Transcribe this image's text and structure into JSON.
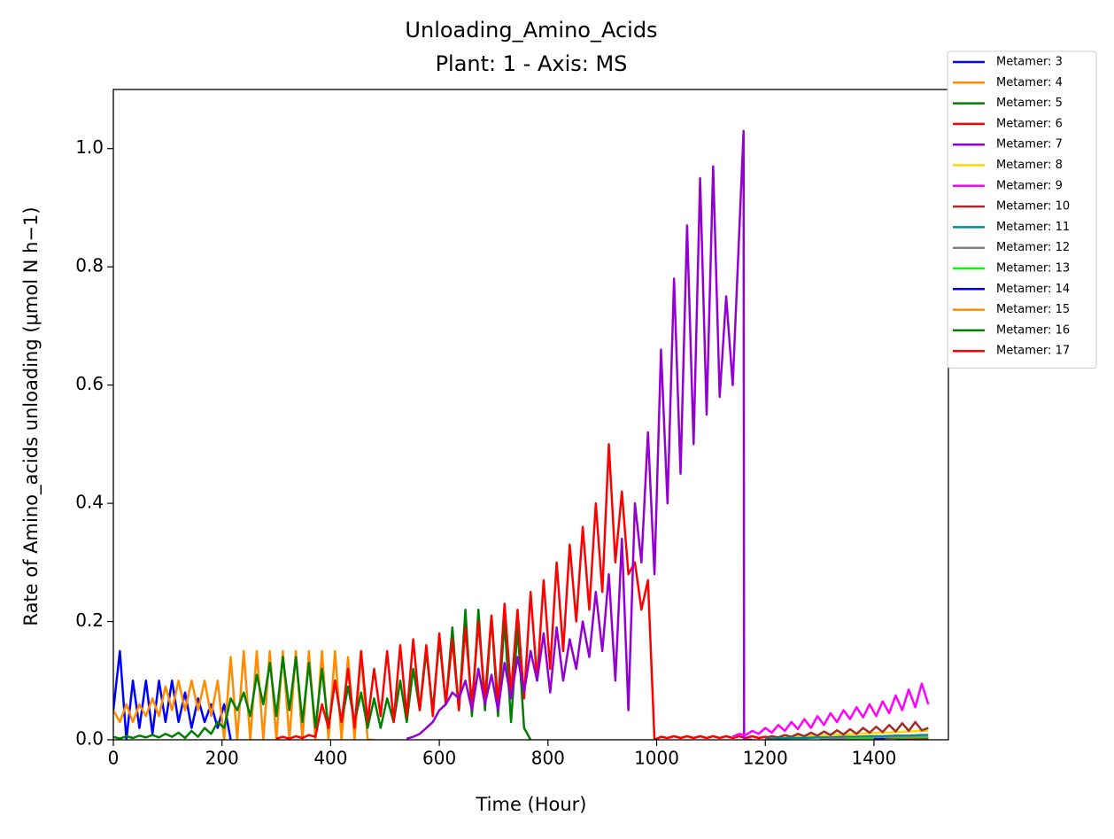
{
  "chart_data": {
    "type": "line",
    "title": "Unloading_Amino_Acids",
    "subtitle": "Plant: 1 - Axis: MS",
    "xlabel": "Time (Hour)",
    "ylabel": "Rate of Amino_acids unloading (μmol N h−1)",
    "xlim": [
      0,
      1537
    ],
    "ylim": [
      0,
      1.1
    ],
    "xticks": [
      0,
      200,
      400,
      600,
      800,
      1000,
      1200,
      1400
    ],
    "yticks": [
      {
        "value": 0,
        "label": "0.0"
      },
      0.2,
      0.4,
      0.6,
      0.8,
      {
        "value": 1,
        "label": "1.0"
      }
    ],
    "series": [
      {
        "name": "Metamer: 3",
        "color": "#0000ff",
        "x": [
          0,
          12,
          24,
          36,
          48,
          60,
          72,
          84,
          96,
          108,
          120,
          132,
          144,
          156,
          168,
          180,
          192,
          204,
          216
        ],
        "values": [
          0.05,
          0.15,
          0.0,
          0.1,
          0.02,
          0.1,
          0.01,
          0.1,
          0.03,
          0.1,
          0.03,
          0.08,
          0.02,
          0.07,
          0.03,
          0.06,
          0.02,
          0.06,
          0.0
        ]
      },
      {
        "name": "Metamer: 4",
        "color": "#ff8c00",
        "x": [
          0,
          12,
          24,
          36,
          48,
          60,
          72,
          84,
          96,
          108,
          120,
          132,
          144,
          156,
          168,
          180,
          192,
          204,
          216,
          228,
          240,
          252,
          264,
          276,
          288,
          300,
          312,
          324,
          336,
          348,
          360,
          372,
          384,
          396,
          408,
          420,
          432,
          444,
          456,
          468,
          480
        ],
        "values": [
          0.05,
          0.03,
          0.06,
          0.03,
          0.06,
          0.04,
          0.07,
          0.04,
          0.09,
          0.05,
          0.1,
          0.05,
          0.1,
          0.05,
          0.1,
          0.04,
          0.1,
          0.0,
          0.14,
          0.0,
          0.15,
          0.0,
          0.15,
          0.0,
          0.15,
          0.0,
          0.15,
          0.0,
          0.15,
          0.0,
          0.15,
          0.0,
          0.15,
          0.0,
          0.15,
          0.0,
          0.14,
          0.0,
          0.15,
          0.0,
          0.0
        ]
      },
      {
        "name": "Metamer: 5",
        "color": "#008000",
        "x": [
          0,
          12,
          24,
          36,
          48,
          60,
          72,
          84,
          96,
          108,
          120,
          132,
          144,
          156,
          168,
          180,
          192,
          204,
          216,
          228,
          240,
          252,
          264,
          276,
          288,
          300,
          312,
          324,
          336,
          348,
          360,
          372,
          384,
          396,
          408,
          420,
          432,
          444,
          456,
          468,
          480,
          492,
          504,
          516,
          528,
          540,
          552,
          564,
          576,
          588,
          600,
          612,
          624,
          636,
          648,
          660,
          672,
          684,
          696,
          708,
          720,
          732,
          744,
          756,
          768
        ],
        "values": [
          0.005,
          0.002,
          0.006,
          0.003,
          0.007,
          0.004,
          0.008,
          0.004,
          0.01,
          0.005,
          0.012,
          0.003,
          0.015,
          0.005,
          0.02,
          0.01,
          0.03,
          0.02,
          0.07,
          0.05,
          0.08,
          0.04,
          0.11,
          0.06,
          0.13,
          0.04,
          0.14,
          0.05,
          0.14,
          0.03,
          0.13,
          0.02,
          0.12,
          0.02,
          0.1,
          0.03,
          0.09,
          0.03,
          0.08,
          0.02,
          0.07,
          0.02,
          0.07,
          0.03,
          0.1,
          0.03,
          0.12,
          0.05,
          0.15,
          0.05,
          0.17,
          0.06,
          0.19,
          0.05,
          0.22,
          0.04,
          0.22,
          0.05,
          0.21,
          0.04,
          0.2,
          0.03,
          0.19,
          0.02,
          0.0
        ]
      },
      {
        "name": "Metamer: 6",
        "color": "#ff0000",
        "x": [
          300,
          312,
          324,
          336,
          348,
          360,
          372,
          384,
          396,
          408,
          420,
          432,
          444,
          456,
          468,
          480,
          492,
          504,
          516,
          528,
          540,
          552,
          564,
          576,
          588,
          600,
          612,
          624,
          636,
          648,
          660,
          672,
          684,
          696,
          708,
          720,
          732,
          744,
          756,
          768,
          780,
          792,
          804,
          816,
          828,
          840,
          852,
          864,
          876,
          888,
          900,
          912,
          924,
          936,
          948,
          960,
          972,
          984,
          996,
          1008,
          1020,
          1032,
          1044,
          1056,
          1068,
          1080,
          1092,
          1104,
          1116,
          1128,
          1140,
          1152,
          1164,
          1176,
          1188,
          1200,
          1212
        ],
        "values": [
          0.002,
          0.005,
          0.002,
          0.006,
          0.003,
          0.008,
          0.005,
          0.06,
          0.02,
          0.1,
          0.03,
          0.12,
          0.02,
          0.15,
          0.03,
          0.12,
          0.04,
          0.15,
          0.03,
          0.16,
          0.04,
          0.17,
          0.05,
          0.16,
          0.04,
          0.18,
          0.06,
          0.17,
          0.05,
          0.19,
          0.06,
          0.2,
          0.07,
          0.21,
          0.06,
          0.23,
          0.08,
          0.22,
          0.07,
          0.25,
          0.1,
          0.27,
          0.12,
          0.3,
          0.15,
          0.33,
          0.2,
          0.36,
          0.22,
          0.4,
          0.25,
          0.5,
          0.3,
          0.42,
          0.28,
          0.3,
          0.22,
          0.27,
          0.0,
          0.005,
          0.003,
          0.006,
          0.003,
          0.006,
          0.003,
          0.006,
          0.003,
          0.006,
          0.003,
          0.006,
          0.003,
          0.006,
          0.003,
          0.006,
          0.003,
          0.005,
          0.003
        ]
      },
      {
        "name": "Metamer: 7",
        "color": "#9400d3",
        "x": [
          540,
          552,
          564,
          576,
          588,
          600,
          612,
          624,
          636,
          648,
          660,
          672,
          684,
          696,
          708,
          720,
          732,
          744,
          756,
          768,
          780,
          792,
          804,
          816,
          828,
          840,
          852,
          864,
          876,
          888,
          900,
          912,
          924,
          936,
          948,
          960,
          972,
          984,
          996,
          1008,
          1020,
          1032,
          1044,
          1056,
          1068,
          1080,
          1092,
          1104,
          1116,
          1128,
          1140,
          1160,
          1161,
          1176
        ],
        "values": [
          0.002,
          0.005,
          0.01,
          0.02,
          0.03,
          0.05,
          0.06,
          0.08,
          0.07,
          0.1,
          0.05,
          0.12,
          0.06,
          0.11,
          0.05,
          0.13,
          0.07,
          0.14,
          0.08,
          0.15,
          0.1,
          0.18,
          0.08,
          0.19,
          0.1,
          0.17,
          0.12,
          0.2,
          0.14,
          0.25,
          0.15,
          0.28,
          0.1,
          0.34,
          0.05,
          0.4,
          0.3,
          0.52,
          0.28,
          0.66,
          0.4,
          0.78,
          0.45,
          0.87,
          0.5,
          0.95,
          0.55,
          0.97,
          0.58,
          0.75,
          0.6,
          1.03,
          0.0,
          0.0
        ]
      },
      {
        "name": "Metamer: 8",
        "color": "#ffd700",
        "x": [
          1200,
          1224,
          1248,
          1272,
          1296,
          1320,
          1344,
          1368,
          1392,
          1416,
          1440,
          1464,
          1488,
          1500
        ],
        "values": [
          0.002,
          0.004,
          0.005,
          0.006,
          0.007,
          0.008,
          0.009,
          0.01,
          0.011,
          0.012,
          0.013,
          0.014,
          0.015,
          0.015
        ]
      },
      {
        "name": "Metamer: 9",
        "color": "#ff00ff",
        "x": [
          1140,
          1152,
          1164,
          1176,
          1188,
          1200,
          1212,
          1224,
          1236,
          1248,
          1260,
          1272,
          1284,
          1296,
          1308,
          1320,
          1332,
          1344,
          1356,
          1368,
          1380,
          1392,
          1404,
          1416,
          1428,
          1440,
          1452,
          1464,
          1476,
          1488,
          1500
        ],
        "values": [
          0.005,
          0.01,
          0.008,
          0.015,
          0.01,
          0.02,
          0.012,
          0.025,
          0.015,
          0.03,
          0.018,
          0.035,
          0.02,
          0.04,
          0.025,
          0.045,
          0.03,
          0.05,
          0.035,
          0.055,
          0.038,
          0.06,
          0.04,
          0.065,
          0.045,
          0.075,
          0.05,
          0.085,
          0.055,
          0.095,
          0.06
        ]
      },
      {
        "name": "Metamer: 10",
        "color": "#a52a2a",
        "x": [
          1200,
          1212,
          1224,
          1236,
          1248,
          1260,
          1272,
          1284,
          1296,
          1308,
          1320,
          1332,
          1344,
          1356,
          1368,
          1380,
          1392,
          1404,
          1416,
          1428,
          1440,
          1452,
          1464,
          1476,
          1488,
          1500
        ],
        "values": [
          0.003,
          0.006,
          0.004,
          0.008,
          0.005,
          0.01,
          0.006,
          0.012,
          0.007,
          0.014,
          0.008,
          0.016,
          0.009,
          0.018,
          0.01,
          0.02,
          0.012,
          0.022,
          0.013,
          0.025,
          0.014,
          0.028,
          0.015,
          0.03,
          0.016,
          0.02
        ]
      },
      {
        "name": "Metamer: 11",
        "color": "#008b8b",
        "x": [
          1200,
          1224,
          1248,
          1272,
          1296,
          1320,
          1344,
          1368,
          1392,
          1416,
          1440,
          1464,
          1488,
          1500
        ],
        "values": [
          0.001,
          0.002,
          0.003,
          0.003,
          0.004,
          0.004,
          0.005,
          0.005,
          0.006,
          0.006,
          0.007,
          0.007,
          0.008,
          0.008
        ]
      },
      {
        "name": "Metamer: 12",
        "color": "#808080",
        "x": [
          1300,
          1340,
          1380,
          1420,
          1460,
          1500
        ],
        "values": [
          0.001,
          0.002,
          0.003,
          0.003,
          0.004,
          0.004
        ]
      },
      {
        "name": "Metamer: 13",
        "color": "#00ff00",
        "x": [
          1350,
          1400,
          1450,
          1500
        ],
        "values": [
          0.001,
          0.001,
          0.002,
          0.002
        ]
      },
      {
        "name": "Metamer: 14",
        "color": "#0000ff",
        "x": [
          1400,
          1450,
          1500
        ],
        "values": [
          0.001,
          0.001,
          0.001
        ]
      },
      {
        "name": "Metamer: 15",
        "color": "#ff8c00",
        "x": [
          1420,
          1460,
          1500
        ],
        "values": [
          0.0,
          0.001,
          0.001
        ]
      },
      {
        "name": "Metamer: 16",
        "color": "#008000",
        "x": [
          1440,
          1470,
          1500
        ],
        "values": [
          0,
          0,
          0.001
        ]
      },
      {
        "name": "Metamer: 17",
        "color": "#ff0000",
        "x": [
          1460,
          1480,
          1500
        ],
        "values": [
          0,
          0,
          0
        ]
      }
    ]
  }
}
